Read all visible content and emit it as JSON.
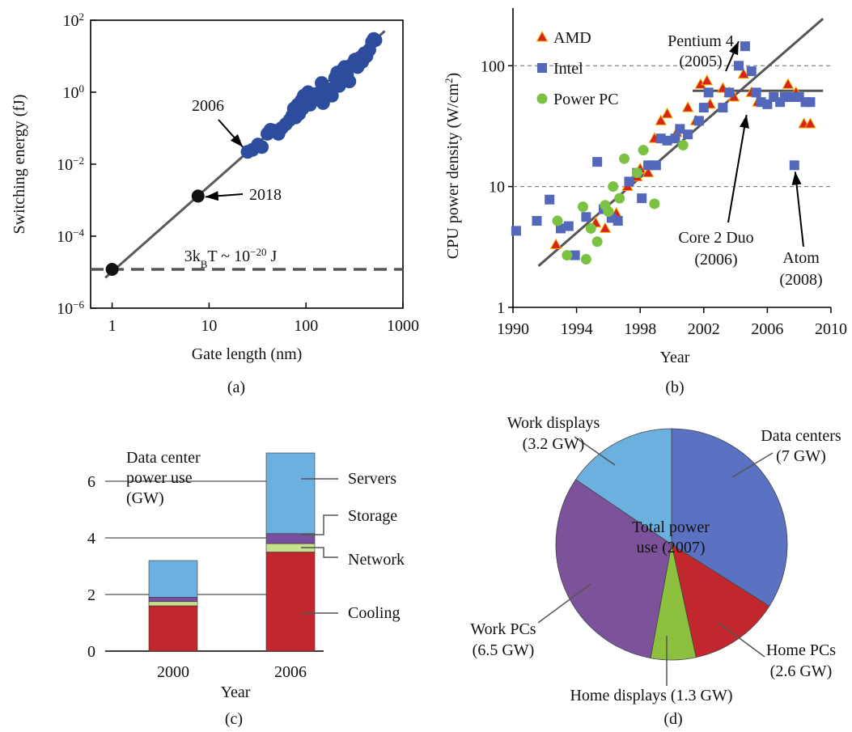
{
  "panels": {
    "a": {
      "caption": "(a)"
    },
    "b": {
      "caption": "(b)"
    },
    "c": {
      "caption": "(c)"
    },
    "d": {
      "caption": "(d)"
    }
  },
  "chart_data": [
    {
      "id": "a",
      "type": "scatter",
      "xlabel": "Gate length (nm)",
      "ylabel": "Switching energy (fJ)",
      "xscale": "log",
      "yscale": "log",
      "xlim": [
        0.6,
        1000
      ],
      "ylim": [
        1e-06,
        100
      ],
      "x_ticks": [
        {
          "v": 1,
          "label": "1"
        },
        {
          "v": 10,
          "label": "10"
        },
        {
          "v": 100,
          "label": "100"
        },
        {
          "v": 1000,
          "label": "1000"
        }
      ],
      "y_ticks": [
        {
          "v": -6,
          "base": "10",
          "exp": "−6"
        },
        {
          "v": -4,
          "base": "10",
          "exp": "−4"
        },
        {
          "v": -2,
          "base": "10",
          "exp": "−2"
        },
        {
          "v": 0,
          "base": "10",
          "exp": "0"
        },
        {
          "v": 2,
          "base": "10",
          "exp": "2"
        }
      ],
      "points": [
        [
          25,
          0.022
        ],
        [
          28,
          0.025
        ],
        [
          32,
          0.035
        ],
        [
          35,
          0.03
        ],
        [
          40,
          0.07
        ],
        [
          43,
          0.09
        ],
        [
          47,
          0.085
        ],
        [
          52,
          0.07
        ],
        [
          56,
          0.1
        ],
        [
          62,
          0.13
        ],
        [
          68,
          0.17
        ],
        [
          72,
          0.22
        ],
        [
          75,
          0.35
        ],
        [
          78,
          0.2
        ],
        [
          82,
          0.45
        ],
        [
          85,
          0.25
        ],
        [
          90,
          0.6
        ],
        [
          92,
          0.35
        ],
        [
          95,
          0.8
        ],
        [
          100,
          0.5
        ],
        [
          105,
          1.0
        ],
        [
          110,
          0.45
        ],
        [
          115,
          0.7
        ],
        [
          120,
          0.6
        ],
        [
          128,
          0.9
        ],
        [
          135,
          0.75
        ],
        [
          145,
          1.8
        ],
        [
          150,
          0.5
        ],
        [
          160,
          0.9
        ],
        [
          175,
          1.2
        ],
        [
          185,
          0.8
        ],
        [
          200,
          2.5
        ],
        [
          210,
          3.5
        ],
        [
          220,
          1.5
        ],
        [
          235,
          4
        ],
        [
          250,
          5
        ],
        [
          265,
          3
        ],
        [
          280,
          2
        ],
        [
          300,
          6
        ],
        [
          320,
          8
        ],
        [
          340,
          5
        ],
        [
          360,
          9
        ],
        [
          380,
          7
        ],
        [
          400,
          12
        ],
        [
          420,
          10
        ],
        [
          450,
          15
        ],
        [
          480,
          25
        ],
        [
          500,
          30
        ],
        [
          520,
          28
        ]
      ],
      "trend_line": [
        [
          0.85,
          7e-06
        ],
        [
          650,
          50
        ]
      ],
      "highlight_points": [
        {
          "x": 1,
          "y": 1.2e-05
        },
        {
          "x": 7.7,
          "y": 0.0013
        }
      ],
      "reference_line": {
        "y": 1.2e-05,
        "label_parts": [
          "3",
          "k",
          "B",
          "T",
          " ~ 10",
          "−20",
          " J"
        ]
      },
      "annotations": [
        {
          "text": "2006",
          "x": 25,
          "y": 0.022
        },
        {
          "text": "2018",
          "x": 7.7,
          "y": 0.0013
        }
      ]
    },
    {
      "id": "b",
      "type": "scatter",
      "xlabel": "Year",
      "ylabel_parts": [
        "CPU power density (W/cm",
        "2",
        ")"
      ],
      "xlim": [
        1990,
        2010
      ],
      "ylim": [
        1,
        300
      ],
      "yscale": "log",
      "x_ticks": [
        1990,
        1994,
        1998,
        2002,
        2006,
        2010
      ],
      "y_ticks": [
        {
          "v": 1,
          "label": "1"
        },
        {
          "v": 10,
          "label": "10"
        },
        {
          "v": 100,
          "label": "100"
        }
      ],
      "gridlines_y": [
        10,
        100
      ],
      "legend": {
        "position": "top-left",
        "entries": [
          "AMD",
          "Intel",
          "Power PC"
        ]
      },
      "series": [
        {
          "name": "AMD",
          "marker": "triangle",
          "color": "#d9211d",
          "points": [
            [
              1992.7,
              3.3
            ],
            [
              1995.2,
              5
            ],
            [
              1995.8,
              4.5
            ],
            [
              1996.5,
              6
            ],
            [
              1997.2,
              10
            ],
            [
              1997.8,
              12
            ],
            [
              1998,
              14
            ],
            [
              1998.5,
              13
            ],
            [
              1998.9,
              25
            ],
            [
              1999.3,
              35
            ],
            [
              1999.7,
              40
            ],
            [
              2000.3,
              28
            ],
            [
              2001,
              45
            ],
            [
              2001.5,
              35
            ],
            [
              2001.8,
              70
            ],
            [
              2002.2,
              75
            ],
            [
              2002.4,
              48
            ],
            [
              2003.2,
              65
            ],
            [
              2003.6,
              60
            ],
            [
              2003.9,
              55
            ],
            [
              2004.5,
              85
            ],
            [
              2005,
              60
            ],
            [
              2005.4,
              50
            ],
            [
              2007.3,
              70
            ],
            [
              2007.8,
              60
            ],
            [
              2008.3,
              33
            ],
            [
              2008.7,
              33
            ]
          ]
        },
        {
          "name": "Intel",
          "marker": "square",
          "color": "#5468bb",
          "points": [
            [
              1990.2,
              4.3
            ],
            [
              1991.5,
              5.2
            ],
            [
              1992.3,
              7.8
            ],
            [
              1993,
              4.5
            ],
            [
              1993.5,
              4.7
            ],
            [
              1993.9,
              2.7
            ],
            [
              1994.6,
              5.6
            ],
            [
              1995.3,
              16
            ],
            [
              1995.7,
              6.5
            ],
            [
              1996.2,
              5.5
            ],
            [
              1996.6,
              5.2
            ],
            [
              1997.3,
              11
            ],
            [
              1997.8,
              13
            ],
            [
              1998.1,
              8
            ],
            [
              1998.5,
              15
            ],
            [
              1999,
              15
            ],
            [
              1999.3,
              25
            ],
            [
              1999.7,
              24
            ],
            [
              2000.2,
              25
            ],
            [
              2000.5,
              30
            ],
            [
              2001,
              27
            ],
            [
              2001.7,
              35
            ],
            [
              2002,
              45
            ],
            [
              2002.3,
              60
            ],
            [
              2003.2,
              45
            ],
            [
              2003.6,
              60
            ],
            [
              2004.2,
              100
            ],
            [
              2004.6,
              145
            ],
            [
              2005,
              90
            ],
            [
              2005.3,
              60
            ],
            [
              2005.6,
              50
            ],
            [
              2006,
              48
            ],
            [
              2006.4,
              55
            ],
            [
              2006.8,
              50
            ],
            [
              2007.1,
              55
            ],
            [
              2007.5,
              55
            ],
            [
              2007.7,
              15
            ],
            [
              2008,
              55
            ],
            [
              2008.4,
              50
            ],
            [
              2008.7,
              50
            ]
          ]
        },
        {
          "name": "Power PC",
          "marker": "circle",
          "color": "#7cc242",
          "points": [
            [
              1992.8,
              5.2
            ],
            [
              1993.4,
              2.7
            ],
            [
              1994.4,
              6.8
            ],
            [
              1994.6,
              2.5
            ],
            [
              1994.9,
              4.5
            ],
            [
              1995.3,
              3.5
            ],
            [
              1995.8,
              7
            ],
            [
              1996.3,
              10
            ],
            [
              1996.7,
              8
            ],
            [
              1997,
              17
            ],
            [
              1997.8,
              13
            ],
            [
              1998.2,
              20
            ],
            [
              1998.9,
              7.2
            ],
            [
              2000.7,
              22
            ],
            [
              1996,
              6.2
            ]
          ]
        }
      ],
      "trend_lines": [
        {
          "from": [
            1991.6,
            2.2
          ],
          "to": [
            2009.5,
            245
          ]
        },
        {
          "from": [
            2001.3,
            62
          ],
          "to": [
            2009.5,
            62
          ]
        }
      ],
      "annotations": [
        {
          "text": [
            "Pentium 4",
            "(2005)"
          ],
          "x": 2004.6,
          "y": 145
        },
        {
          "text": [
            "Core 2 Duo",
            "(2006)"
          ],
          "x": 2005.2,
          "y": 55
        },
        {
          "text": [
            "Atom",
            "(2008)"
          ],
          "x": 2007.7,
          "y": 15
        }
      ]
    },
    {
      "id": "c",
      "type": "bar",
      "stacked": true,
      "xlabel": "Year",
      "title_lines": [
        "Data center",
        "power use",
        "(GW)"
      ],
      "categories": [
        "2000",
        "2006"
      ],
      "ylim": [
        0,
        7
      ],
      "y_ticks": [
        0,
        2,
        4,
        6
      ],
      "gridlines_y": [
        2,
        4,
        6
      ],
      "series": [
        {
          "name": "Cooling",
          "color": "#c1272d",
          "values": [
            1.6,
            3.5
          ]
        },
        {
          "name": "Network",
          "color": "#c7e08d",
          "values": [
            0.15,
            0.3
          ]
        },
        {
          "name": "Storage",
          "color": "#7a4e9e",
          "values": [
            0.15,
            0.35
          ]
        },
        {
          "name": "Servers",
          "color": "#6cb0e0",
          "values": [
            1.3,
            2.85
          ]
        }
      ]
    },
    {
      "id": "d",
      "type": "pie",
      "center_label_lines": [
        "Total power",
        "use (2007)"
      ],
      "slices": [
        {
          "label_lines": [
            "Data centers",
            "(7 GW)"
          ],
          "value": 7,
          "color": "#5b71c2"
        },
        {
          "label_lines": [
            "Home PCs",
            "(2.6 GW)"
          ],
          "value": 2.6,
          "color": "#c1272d"
        },
        {
          "label_lines": [
            "Home displays (1.3 GW)"
          ],
          "value": 1.3,
          "color": "#8dc03f"
        },
        {
          "label_lines": [
            "Work PCs",
            "(6.5 GW)"
          ],
          "value": 6.5,
          "color": "#7c529b"
        },
        {
          "label_lines": [
            "Work displays",
            "(3.2 GW)"
          ],
          "value": 3.2,
          "color": "#6cb0e0"
        }
      ]
    }
  ]
}
